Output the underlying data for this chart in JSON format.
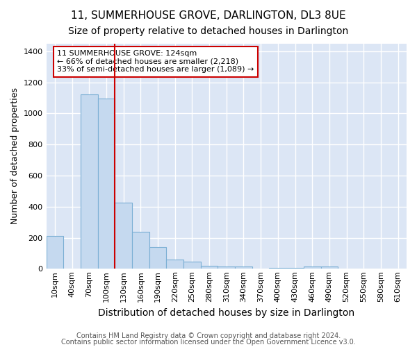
{
  "title": "11, SUMMERHOUSE GROVE, DARLINGTON, DL3 8UE",
  "subtitle": "Size of property relative to detached houses in Darlington",
  "xlabel": "Distribution of detached houses by size in Darlington",
  "ylabel": "Number of detached properties",
  "footnote1": "Contains HM Land Registry data © Crown copyright and database right 2024.",
  "footnote2": "Contains public sector information licensed under the Open Government Licence v3.0.",
  "bar_labels": [
    "10sqm",
    "40sqm",
    "70sqm",
    "100sqm",
    "130sqm",
    "160sqm",
    "190sqm",
    "220sqm",
    "250sqm",
    "280sqm",
    "310sqm",
    "340sqm",
    "370sqm",
    "400sqm",
    "430sqm",
    "460sqm",
    "490sqm",
    "520sqm",
    "550sqm",
    "580sqm",
    "610sqm"
  ],
  "bar_values": [
    210,
    0,
    1120,
    1095,
    425,
    240,
    140,
    60,
    45,
    20,
    15,
    15,
    0,
    5,
    5,
    15,
    15,
    0,
    0,
    0,
    0
  ],
  "bar_color": "#c5d9ef",
  "bar_edge_color": "#7bafd4",
  "ax_background_color": "#dce6f5",
  "fig_background_color": "#ffffff",
  "grid_color": "#ffffff",
  "ylim": [
    0,
    1450
  ],
  "vline_x_index": 4,
  "vline_color": "#cc0000",
  "annotation_text": "11 SUMMERHOUSE GROVE: 124sqm\n← 66% of detached houses are smaller (2,218)\n33% of semi-detached houses are larger (1,089) →",
  "annotation_box_color": "#ffffff",
  "annotation_box_edge": "#cc0000",
  "title_fontsize": 11,
  "subtitle_fontsize": 10,
  "ylabel_fontsize": 9,
  "xlabel_fontsize": 10,
  "tick_fontsize": 8,
  "annotation_fontsize": 8,
  "footnote_fontsize": 7
}
